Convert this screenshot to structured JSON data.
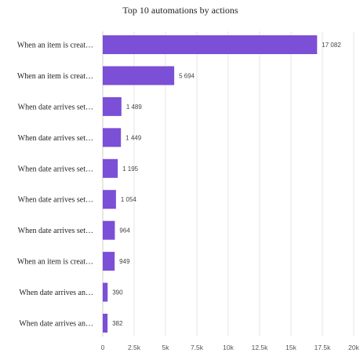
{
  "chart_data": {
    "type": "bar",
    "orientation": "horizontal",
    "title": "Top 10 automations by actions",
    "categories": [
      "When an item is creat…",
      "When an item is creat…",
      "When date arrives set…",
      "When date arrives set…",
      "When date arrives set…",
      "When date arrives set…",
      "When date arrives set…",
      "When an item is creat…",
      "When date arrives an…",
      "When date arrives an…"
    ],
    "values": [
      17082,
      5694,
      1489,
      1449,
      1195,
      1054,
      964,
      949,
      390,
      382
    ],
    "value_labels": [
      "17 082",
      "5 694",
      "1 489",
      "1 449",
      "1 195",
      "1 054",
      "964",
      "949",
      "390",
      "382"
    ],
    "x_ticks": [
      0,
      2500,
      5000,
      7500,
      10000,
      12500,
      15000,
      17500,
      20000
    ],
    "x_tick_labels": [
      "0",
      "2.5k",
      "5k",
      "7.5k",
      "10k",
      "12.5k",
      "15k",
      "17.5k",
      "20k"
    ],
    "xlim": [
      0,
      20000
    ],
    "xlabel": "",
    "ylabel": "",
    "grid": true,
    "legend": "none",
    "bar_color": "#7b4fd6"
  }
}
